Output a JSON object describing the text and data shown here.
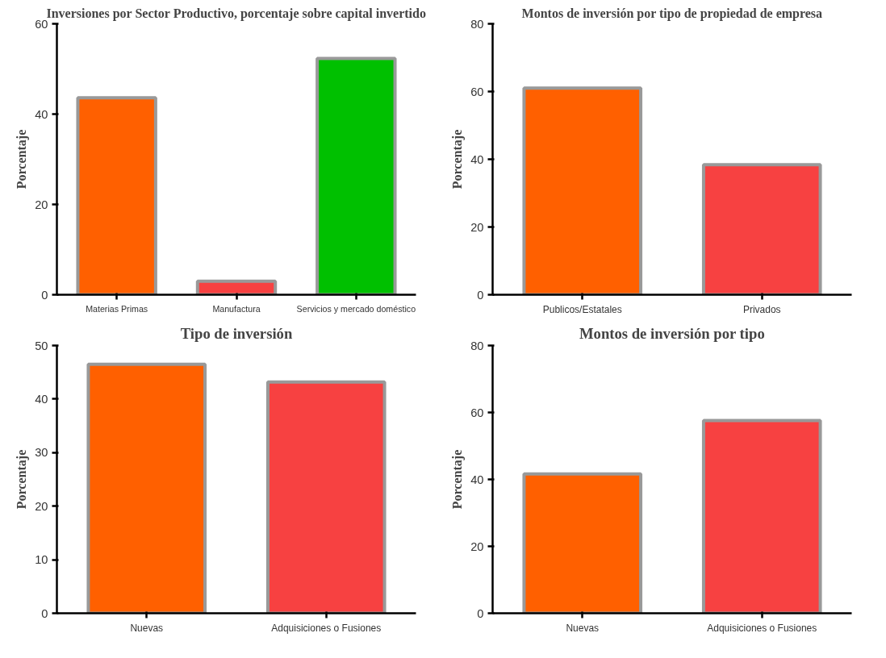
{
  "chart_data": [
    {
      "type": "bar",
      "title": "Inversiones por Sector Productivo, porcentaje sobre capital invertido",
      "ylabel": "Porcentaje",
      "categories": [
        "Materias Primas",
        "Manufactura",
        "Servicios y mercado doméstico"
      ],
      "values": [
        43.6,
        3.0,
        52.3
      ],
      "colors": [
        "#ff6000",
        "#f74141",
        "#00c000"
      ],
      "ylim": [
        0,
        60
      ],
      "yticks": [
        0,
        20,
        40,
        60
      ],
      "grid": false
    },
    {
      "type": "bar",
      "title": "Montos de inversión por tipo de propiedad de empresa",
      "ylabel": "Porcentaje",
      "categories": [
        "Publicos/Estatales",
        "Privados"
      ],
      "values": [
        61.0,
        38.4
      ],
      "colors": [
        "#ff6000",
        "#f74141"
      ],
      "ylim": [
        0,
        80
      ],
      "yticks": [
        0,
        20,
        40,
        60,
        80
      ],
      "grid": false
    },
    {
      "type": "bar",
      "title": "Tipo de inversión",
      "ylabel": "Porcentaje",
      "categories": [
        "Nuevas",
        "Adquisiciones o Fusiones"
      ],
      "values": [
        46.5,
        43.2
      ],
      "colors": [
        "#ff6000",
        "#f74141"
      ],
      "ylim": [
        0,
        50
      ],
      "yticks": [
        0,
        10,
        20,
        30,
        40,
        50
      ],
      "grid": false
    },
    {
      "type": "bar",
      "title": "Montos de inversión por tipo",
      "ylabel": "Porcentaje",
      "categories": [
        "Nuevas",
        "Adquisiciones o Fusiones"
      ],
      "values": [
        41.6,
        57.6
      ],
      "colors": [
        "#ff6000",
        "#f74141"
      ],
      "ylim": [
        0,
        80
      ],
      "yticks": [
        0,
        20,
        40,
        60,
        80
      ],
      "grid": false
    }
  ]
}
